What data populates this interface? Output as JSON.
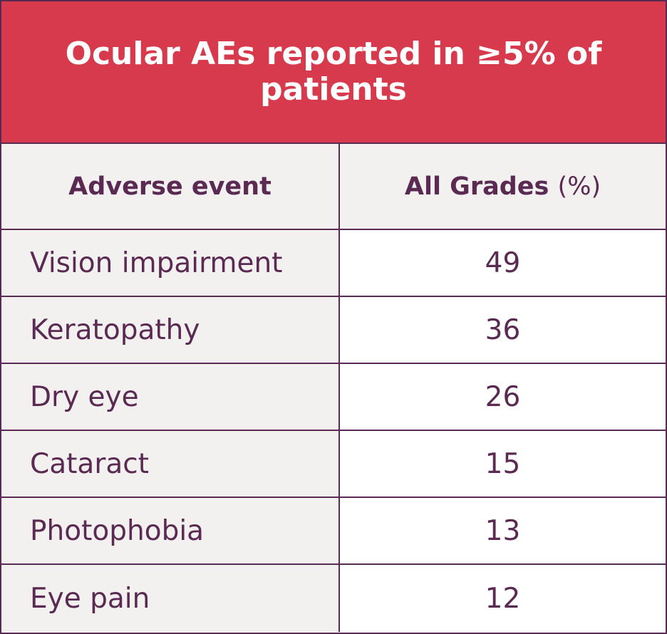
{
  "table": {
    "title": "Ocular AEs reported in ≥5% of patients",
    "header": {
      "event_label": "Adverse event",
      "grades_label": "All Grades",
      "grades_unit": "(%)"
    },
    "rows": [
      {
        "event": "Vision impairment",
        "value": "49"
      },
      {
        "event": "Keratopathy",
        "value": "36"
      },
      {
        "event": "Dry eye",
        "value": "26"
      },
      {
        "event": "Cataract",
        "value": "15"
      },
      {
        "event": "Photophobia",
        "value": "13"
      },
      {
        "event": "Eye pain",
        "value": "12"
      }
    ],
    "colors": {
      "title_bg": "#d63a4c",
      "border": "#5b2a52",
      "text": "#5b2a52",
      "shaded_cell": "#f3f1f0"
    }
  }
}
